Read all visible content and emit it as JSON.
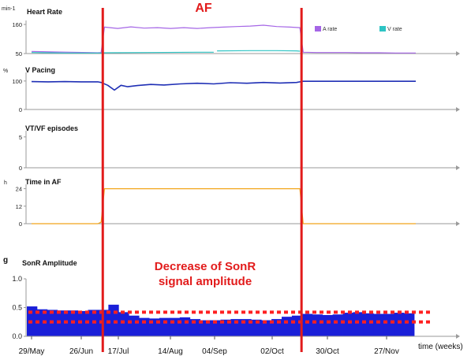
{
  "chart_data": [
    {
      "type": "line",
      "title": "Heart Rate",
      "unit": "min-1",
      "yticks": [
        50,
        160
      ],
      "ylim": [
        50,
        175
      ],
      "legend": [
        "A rate",
        "V rate"
      ],
      "colors": {
        "A rate": "#a566e6",
        "V rate": "#2ec4c4"
      },
      "series": [
        {
          "name": "A rate",
          "points": [
            [
              0,
              58
            ],
            [
              0.3,
              57
            ],
            [
              0.7,
              56
            ],
            [
              1.2,
              55
            ],
            [
              1.7,
              54
            ],
            [
              2.0,
              53
            ],
            [
              2.1,
              54
            ],
            [
              2.2,
              150
            ],
            [
              2.6,
              145
            ],
            [
              3.0,
              151
            ],
            [
              3.4,
              146
            ],
            [
              3.8,
              148
            ],
            [
              4.2,
              145
            ],
            [
              4.6,
              148
            ],
            [
              5.0,
              145
            ],
            [
              5.4,
              148
            ],
            [
              5.8,
              150
            ],
            [
              6.2,
              152
            ],
            [
              6.6,
              154
            ],
            [
              7.0,
              157
            ],
            [
              7.4,
              152
            ],
            [
              7.8,
              150
            ],
            [
              8.1,
              148
            ],
            [
              8.2,
              55
            ],
            [
              8.6,
              54
            ],
            [
              9.0,
              54
            ],
            [
              9.5,
              54
            ],
            [
              10.0,
              53
            ],
            [
              10.5,
              53
            ],
            [
              11.0,
              52
            ],
            [
              11.6,
              52
            ]
          ]
        },
        {
          "name": "V rate",
          "points": [
            [
              0,
              54
            ],
            [
              0.5,
              53
            ],
            [
              1.0,
              52
            ],
            [
              1.5,
              52
            ],
            [
              2.0,
              52
            ],
            [
              2.1,
              52
            ],
            [
              2.2,
              53
            ],
            [
              3.5,
              54
            ],
            [
              5.0,
              55
            ],
            [
              5.5,
              55
            ]
          ]
        },
        {
          "name": "V rate",
          "points": [
            [
              5.6,
              60
            ],
            [
              6.6,
              61
            ],
            [
              7.4,
              61
            ],
            [
              8.0,
              60
            ],
            [
              8.1,
              59
            ]
          ]
        }
      ]
    },
    {
      "type": "line",
      "title": "V Pacing",
      "unit": "%",
      "yticks": [
        0,
        100
      ],
      "ylim": [
        0,
        130
      ],
      "colors": {
        "V Pacing": "#1f2fb5"
      },
      "series": [
        {
          "points": [
            [
              0,
              98
            ],
            [
              0.5,
              97
            ],
            [
              1.0,
              98
            ],
            [
              1.5,
              97
            ],
            [
              2.0,
              97
            ],
            [
              2.1,
              95
            ],
            [
              2.3,
              85
            ],
            [
              2.5,
              68
            ],
            [
              2.7,
              85
            ],
            [
              2.9,
              80
            ],
            [
              3.2,
              84
            ],
            [
              3.6,
              88
            ],
            [
              4.0,
              86
            ],
            [
              4.5,
              90
            ],
            [
              5.0,
              92
            ],
            [
              5.5,
              90
            ],
            [
              6.0,
              94
            ],
            [
              6.5,
              92
            ],
            [
              7.0,
              95
            ],
            [
              7.5,
              93
            ],
            [
              8.0,
              95
            ],
            [
              8.1,
              97
            ],
            [
              8.2,
              99
            ],
            [
              11.6,
              99
            ]
          ]
        }
      ]
    },
    {
      "type": "line",
      "title": "VT/VF episodes",
      "yticks": [
        0,
        5
      ],
      "ylim": [
        0,
        6
      ],
      "series": []
    },
    {
      "type": "line",
      "title": "Time in AF",
      "unit": "h",
      "yticks": [
        0,
        12,
        24
      ],
      "ylim": [
        0,
        27
      ],
      "colors": {
        "Time in AF": "#f2a51a"
      },
      "series": [
        {
          "points": [
            [
              0,
              0
            ],
            [
              2.0,
              0
            ],
            [
              2.1,
              1
            ],
            [
              2.2,
              24
            ],
            [
              8.1,
              24
            ],
            [
              8.2,
              0
            ],
            [
              11.6,
              0
            ]
          ]
        }
      ]
    },
    {
      "type": "bar",
      "title": "SonR Amplitude",
      "unit": "g",
      "yticks": [
        "0.0",
        "0.5",
        "1.0"
      ],
      "ylim": [
        0,
        1.0
      ],
      "bar_color": "#1a1fd8",
      "values": [
        0.52,
        0.47,
        0.46,
        0.45,
        0.45,
        0.44,
        0.46,
        0.46,
        0.55,
        0.42,
        0.36,
        0.32,
        0.31,
        0.32,
        0.32,
        0.33,
        0.3,
        0.28,
        0.28,
        0.29,
        0.3,
        0.3,
        0.29,
        0.28,
        0.3,
        0.34,
        0.36,
        0.39,
        0.38,
        0.37,
        0.38,
        0.41,
        0.42,
        0.4,
        0.39,
        0.39,
        0.41,
        0.4
      ],
      "reference_lines": [
        0.42,
        0.25
      ],
      "xlabels": [
        "29/May",
        "26/Jun",
        "17/Jul",
        "14/Aug",
        "04/Sep",
        "02/Oct",
        "30/Oct",
        "27/Nov"
      ],
      "xlabel": "time (weeks)"
    }
  ],
  "annotations": {
    "af_label": "AF",
    "decrease_line1": "Decrease of SonR",
    "decrease_line2": "signal amplitude",
    "af_start": 2.15,
    "af_end": 8.15
  }
}
